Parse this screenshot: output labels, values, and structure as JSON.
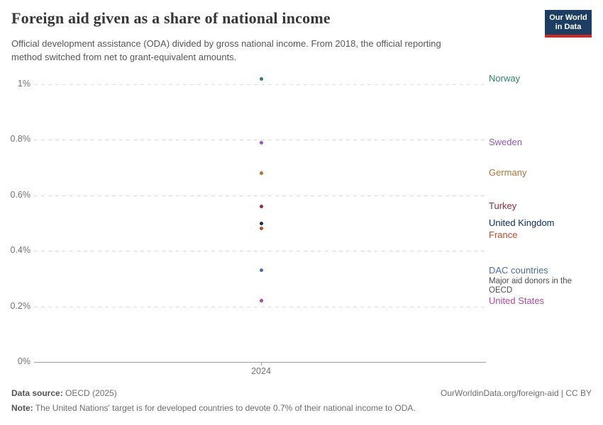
{
  "header": {
    "title": "Foreign aid given as a share of national income",
    "subtitle_lines": [
      "Official development assistance (ODA) divided by gross national income. From 2018, the official reporting",
      "method switched from net to grant-equivalent amounts."
    ],
    "logo_lines": [
      "Our World",
      "in Data"
    ],
    "logo_colors": {
      "background": "#1d3d63",
      "accent": "#cf2722"
    }
  },
  "chart_data": {
    "type": "scatter",
    "x": [
      2024
    ],
    "x_tick_label": "2024",
    "ylim": [
      0,
      1.05
    ],
    "grid": true,
    "legend_position": "right-labels",
    "y_ticks": [
      {
        "value": 0,
        "label": "0%"
      },
      {
        "value": 0.2,
        "label": "0.2%"
      },
      {
        "value": 0.4,
        "label": "0.4%"
      },
      {
        "value": 0.6,
        "label": "0.6%"
      },
      {
        "value": 0.8,
        "label": "0.8%"
      },
      {
        "value": 1,
        "label": "1%"
      }
    ],
    "series": [
      {
        "name": "Norway",
        "value": 1.02,
        "color": "#2C8465"
      },
      {
        "name": "Sweden",
        "value": 0.79,
        "color": "#9455BE"
      },
      {
        "name": "Germany",
        "value": 0.68,
        "color": "#AC7438"
      },
      {
        "name": "Turkey",
        "value": 0.56,
        "color": "#8C2F39"
      },
      {
        "name": "United Kingdom",
        "value": 0.5,
        "color": "#0D2E63"
      },
      {
        "name": "France",
        "value": 0.48,
        "color": "#C14A27"
      },
      {
        "name": "DAC countries",
        "value": 0.33,
        "color": "#4C6C9E",
        "annotation": "Major aid donors in the OECD"
      },
      {
        "name": "United States",
        "value": 0.22,
        "color": "#AE4A9E"
      }
    ]
  },
  "footer": {
    "data_source_label": "Data source:",
    "data_source_value": " OECD (2025)",
    "attribution": "OurWorldinData.org/foreign-aid | CC BY",
    "note_label": "Note:",
    "note_value": " The United Nations' target is for developed countries to devote 0.7% of their national income to ODA."
  }
}
